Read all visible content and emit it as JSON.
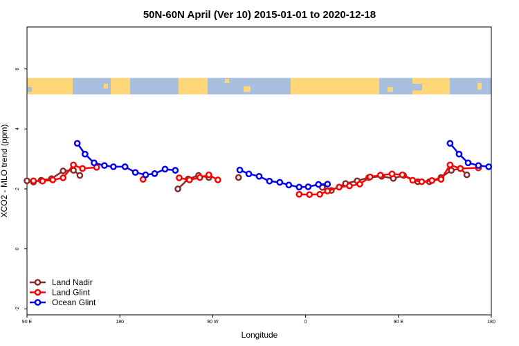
{
  "chart_data": {
    "type": "line",
    "title": "50N-60N April (Ver 10)   2015-01-01 to 2020-12-18",
    "xlabel": "Longitude",
    "ylabel": "XCO2 - MLO trend (ppm)",
    "xlim": [
      0,
      360
    ],
    "ylim": [
      -2.2,
      7.4
    ],
    "x_ticks": [
      {
        "value": 0,
        "label": "90 E"
      },
      {
        "value": 72,
        "label": "180"
      },
      {
        "value": 144,
        "label": "90 W"
      },
      {
        "value": 216,
        "label": "0"
      },
      {
        "value": 288,
        "label": "90 E"
      },
      {
        "value": 360,
        "label": "180"
      }
    ],
    "y_ticks": [
      {
        "value": -2,
        "label": "-2"
      },
      {
        "value": 0,
        "label": "0"
      },
      {
        "value": 2,
        "label": "2"
      },
      {
        "value": 4,
        "label": "4"
      },
      {
        "value": 6,
        "label": "6"
      }
    ],
    "map_band": {
      "ymin": 5.15,
      "ymax": 5.7,
      "ocean_color": "#a9bfdf",
      "land_color": "#ffd778"
    },
    "legend_position": "bottom-left",
    "series": [
      {
        "name": "Land Nadir",
        "color": "#8b2a2a",
        "segments": [
          [
            [
              0,
              2.27
            ],
            [
              5,
              2.23
            ],
            [
              11,
              2.29
            ],
            [
              19,
              2.34
            ],
            [
              28,
              2.6
            ],
            [
              36,
              2.62
            ],
            [
              41,
              2.45
            ]
          ],
          [
            [
              117,
              2.0
            ],
            [
              125,
              2.33
            ],
            [
              133,
              2.45
            ],
            [
              141,
              2.38
            ]
          ],
          [
            [
              164,
              2.38
            ]
          ],
          [
            [
              229,
              2.05
            ],
            [
              236,
              1.95
            ],
            [
              247,
              2.18
            ],
            [
              256,
              2.27
            ],
            [
              265,
              2.38
            ],
            [
              275,
              2.42
            ],
            [
              284,
              2.35
            ],
            [
              292,
              2.45
            ],
            [
              303,
              2.24
            ],
            [
              312,
              2.24
            ],
            [
              321,
              2.38
            ],
            [
              329,
              2.62
            ],
            [
              336,
              2.68
            ],
            [
              341,
              2.47
            ]
          ]
        ]
      },
      {
        "name": "Land Glint",
        "color": "#ff0000",
        "segments": [
          [
            [
              5,
              2.27
            ],
            [
              12,
              2.26
            ],
            [
              20,
              2.3
            ],
            [
              28,
              2.37
            ],
            [
              36,
              2.8
            ],
            [
              43,
              2.68
            ],
            [
              54,
              2.72
            ]
          ],
          [
            [
              90,
              2.32
            ]
          ],
          [
            [
              118,
              2.37
            ],
            [
              126,
              2.3
            ],
            [
              134,
              2.38
            ],
            [
              141,
              2.47
            ],
            [
              148,
              2.3
            ]
          ],
          [
            [
              211,
              1.82
            ],
            [
              219,
              1.81
            ],
            [
              227,
              1.82
            ],
            [
              233,
              1.93
            ],
            [
              242,
              2.06
            ],
            [
              250,
              2.1
            ],
            [
              258,
              2.16
            ],
            [
              266,
              2.4
            ],
            [
              274,
              2.46
            ],
            [
              283,
              2.5
            ],
            [
              291,
              2.47
            ],
            [
              299,
              2.29
            ],
            [
              306,
              2.24
            ],
            [
              314,
              2.28
            ],
            [
              321,
              2.32
            ],
            [
              328,
              2.8
            ],
            [
              336,
              2.68
            ],
            [
              350,
              2.7
            ]
          ]
        ]
      },
      {
        "name": "Ocean Glint",
        "color": "#0000ee",
        "segments": [
          [
            [
              39,
              3.52
            ],
            [
              45,
              3.16
            ],
            [
              52,
              2.87
            ],
            [
              60,
              2.78
            ],
            [
              67,
              2.74
            ],
            [
              76,
              2.74
            ],
            [
              84,
              2.55
            ],
            [
              92,
              2.47
            ],
            [
              99,
              2.51
            ],
            [
              107,
              2.66
            ],
            [
              115,
              2.62
            ]
          ],
          [
            [
              165,
              2.63
            ],
            [
              172,
              2.5
            ],
            [
              180,
              2.42
            ],
            [
              188,
              2.26
            ],
            [
              196,
              2.22
            ],
            [
              203,
              2.13
            ],
            [
              211,
              2.06
            ],
            [
              218,
              2.07
            ],
            [
              226,
              2.15
            ],
            [
              233,
              2.16
            ]
          ],
          [
            [
              328,
              3.52
            ],
            [
              335,
              3.16
            ],
            [
              342,
              2.87
            ],
            [
              350,
              2.78
            ],
            [
              358,
              2.74
            ]
          ]
        ]
      }
    ]
  }
}
